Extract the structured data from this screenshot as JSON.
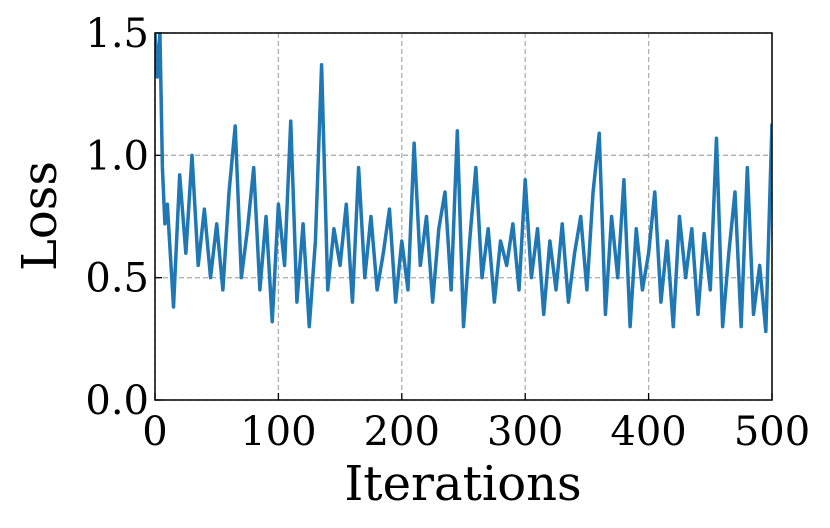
{
  "chart_data": {
    "type": "line",
    "xlabel": "Iterations",
    "ylabel": "Loss",
    "x": [
      0,
      2,
      4,
      6,
      8,
      10,
      15,
      20,
      25,
      30,
      35,
      40,
      45,
      50,
      55,
      60,
      65,
      70,
      75,
      80,
      85,
      90,
      95,
      100,
      105,
      110,
      115,
      120,
      125,
      130,
      135,
      140,
      145,
      150,
      155,
      160,
      165,
      170,
      175,
      180,
      185,
      190,
      195,
      200,
      205,
      210,
      215,
      220,
      225,
      230,
      235,
      240,
      245,
      250,
      255,
      260,
      265,
      270,
      275,
      280,
      285,
      290,
      295,
      300,
      305,
      310,
      315,
      320,
      325,
      330,
      335,
      340,
      345,
      350,
      355,
      360,
      365,
      370,
      375,
      380,
      385,
      390,
      395,
      400,
      405,
      410,
      415,
      420,
      425,
      430,
      435,
      440,
      445,
      450,
      455,
      460,
      465,
      470,
      475,
      480,
      485,
      490,
      495,
      500
    ],
    "series": [
      {
        "name": "Loss",
        "color": "#1f77b4",
        "values": [
          1.5,
          1.32,
          1.5,
          0.95,
          0.72,
          0.8,
          0.38,
          0.92,
          0.6,
          1.0,
          0.55,
          0.78,
          0.5,
          0.72,
          0.45,
          0.85,
          1.12,
          0.5,
          0.7,
          0.95,
          0.45,
          0.75,
          0.32,
          0.8,
          0.55,
          1.14,
          0.4,
          0.72,
          0.3,
          0.65,
          1.37,
          0.45,
          0.7,
          0.55,
          0.8,
          0.4,
          0.95,
          0.5,
          0.75,
          0.45,
          0.6,
          0.78,
          0.4,
          0.65,
          0.45,
          1.05,
          0.55,
          0.75,
          0.4,
          0.7,
          0.85,
          0.45,
          1.1,
          0.3,
          0.65,
          0.95,
          0.5,
          0.7,
          0.4,
          0.65,
          0.55,
          0.72,
          0.45,
          0.9,
          0.5,
          0.7,
          0.35,
          0.65,
          0.45,
          0.72,
          0.4,
          0.6,
          0.75,
          0.45,
          0.85,
          1.09,
          0.35,
          0.75,
          0.5,
          0.9,
          0.3,
          0.7,
          0.45,
          0.6,
          0.85,
          0.4,
          0.65,
          0.3,
          0.75,
          0.5,
          0.7,
          0.35,
          0.68,
          0.45,
          1.07,
          0.3,
          0.6,
          0.85,
          0.3,
          0.95,
          0.35,
          0.55,
          0.28,
          1.13
        ]
      }
    ],
    "xlim": [
      0,
      500
    ],
    "xticks": [
      0,
      100,
      200,
      300,
      400,
      500
    ],
    "ylim": [
      0,
      1.5
    ],
    "yticks": [
      {
        "value": 0,
        "label": "0.0"
      },
      {
        "value": 0.5,
        "label": "0.5"
      },
      {
        "value": 1,
        "label": "1.0"
      },
      {
        "value": 1.5,
        "label": "1.5"
      }
    ],
    "grid": true
  }
}
